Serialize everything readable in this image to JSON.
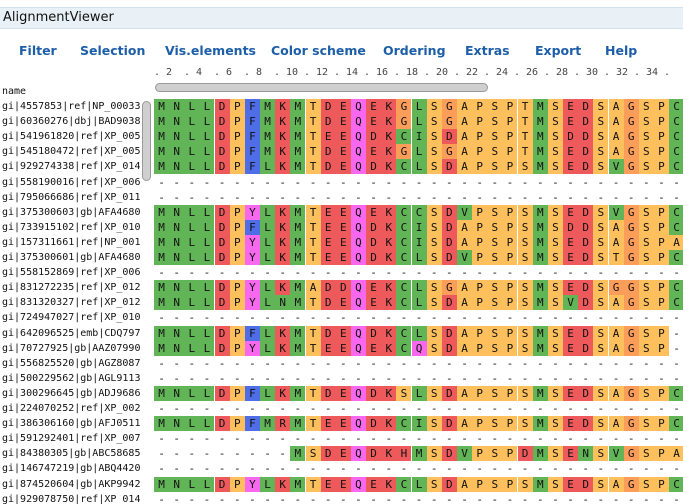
{
  "app": {
    "title": "AlignmentViewer"
  },
  "menu": [
    {
      "name": "menu-filter",
      "label": "Filter"
    },
    {
      "name": "menu-selection",
      "label": "Selection"
    },
    {
      "name": "menu-vis-elements",
      "label": "Vis.elements"
    },
    {
      "name": "menu-color-scheme",
      "label": "Color scheme"
    },
    {
      "name": "menu-ordering",
      "label": "Ordering"
    },
    {
      "name": "menu-extras",
      "label": "Extras"
    },
    {
      "name": "menu-export",
      "label": "Export"
    },
    {
      "name": "menu-help",
      "label": "Help"
    }
  ],
  "ruler": {
    "first_visible_column": 1,
    "ticks": [
      ". 2",
      ". 4",
      ". 6",
      ". 8",
      ". 10",
      ". 12",
      ". 14",
      ". 16",
      ". 18",
      ". 20",
      ". 22",
      ". 24",
      ". 26",
      ". 28",
      ". 30",
      ". 32",
      ". 34",
      "."
    ]
  },
  "names_header": "name",
  "colors": {
    "M": "#62b557",
    "N": "#62b557",
    "S": "#fdc05d",
    "T": "#fdc05d",
    "P": "#fdc05d",
    "L": "#62b557",
    "I": "#62b557",
    "V": "#62b557",
    "C": "#62b557",
    "F": "#4f6de6",
    "Y": "#f768ef",
    "W": "#4f6de6",
    "D": "#ee5a5b",
    "E": "#ee5a5b",
    "K": "#ee5a5b",
    "R": "#ee5a5b",
    "Q": "#f768ef",
    "H": "#ee5a5b",
    "G": "#fd9d5a",
    "A": "#fdc05d",
    "-": "#ffffff"
  },
  "rows": [
    {
      "name": "gi|4557853|ref|NP_00033",
      "seq": "MNLLDPFMKMTDEQEKGLSGAPSPTMSEDSAGSPC"
    },
    {
      "name": "gi|60360276|dbj|BAD9038",
      "seq": "MNLLDPFMKMTDEQEKGLSGAPSPTMSEDSAGSPC"
    },
    {
      "name": "gi|541961820|ref|XP_005",
      "seq": "MNLLDPFMKMTEEQDKCISDAPSPTMSDDSAGSPC"
    },
    {
      "name": "gi|545180472|ref|XP_005",
      "seq": "MNLLDPFMKMTDEQEKGLSGAPSPTMSEDSAGSPC"
    },
    {
      "name": "gi|929274338|ref|XP_014",
      "seq": "MNLLDPFLKMTDEQDKCLSDAPSPSMSEDSVGSPC"
    },
    {
      "name": "gi|558190016|ref|XP_006",
      "seq": "-----------------------------------"
    },
    {
      "name": "gi|795066686|ref|XP_011",
      "seq": "-----------------------------------"
    },
    {
      "name": "gi|375300603|gb|AFA4680",
      "seq": "MNLLDPYLKMTEEQEKCCSDVPSPSMSEDSVGSPC"
    },
    {
      "name": "gi|733915102|ref|XP_010",
      "seq": "MNLLDPFLKMTEEQDKCISDAPSPSMSDDSAGSPC"
    },
    {
      "name": "gi|157311661|ref|NP_001",
      "seq": "MNLLDPYLKMTEEQDKCISDAPSPSMSEDSAGSPA"
    },
    {
      "name": "gi|375300601|gb|AFA4680",
      "seq": "MNLLDPYLKMTEEQDKCLSDVPSPSMSEDSTGSPC"
    },
    {
      "name": "gi|558152869|ref|XP_006",
      "seq": "-----------------------------------"
    },
    {
      "name": "gi|831272235|ref|XP_012",
      "seq": "MNLLDPYLKMADDQEKCLSGAPSPSMSEDSGGSPC"
    },
    {
      "name": "gi|831320327|ref|XP_012",
      "seq": "MNLLDPYLNMTDEQEKCLSDAPSPSMSVDSAGSPC"
    },
    {
      "name": "gi|724947027|ref|XP_010",
      "seq": "-----------------------------------"
    },
    {
      "name": "gi|642096525|emb|CDQ797",
      "seq": "MNLLDPFLKMTDEQDKCLSDAPSPSMSEDSAGSP-"
    },
    {
      "name": "gi|70727925|gb|AAZ07990",
      "seq": "MNLLDPYLKMTEEQEKCQSDAPSPSMSEDSAGSP-"
    },
    {
      "name": "gi|556825520|gb|AGZ8087",
      "seq": "-----------------------------------"
    },
    {
      "name": "gi|500229562|gb|AGL9113",
      "seq": "-----------------------------------"
    },
    {
      "name": "gi|300296645|gb|ADJ9686",
      "seq": "MNLLDPFLKMTDEQDKSLSDAPSPSMSEDSAGSPC"
    },
    {
      "name": "gi|224070252|ref|XP_002",
      "seq": "-----------------------------------"
    },
    {
      "name": "gi|386306160|gb|AFJ0511",
      "seq": "MNLLDPFMRMTEEQDKCISDAPSPSMSEDSAGSPC"
    },
    {
      "name": "gi|591292401|ref|XP_007",
      "seq": "-----------------------------------"
    },
    {
      "name": "gi|84380305|gb|ABC58685",
      "seq": "---------MSDEQDKHMSDVPSPDMSENSVGSPA"
    },
    {
      "name": "gi|146747219|gb|ABQ4420",
      "seq": "-----------------------------------"
    },
    {
      "name": "gi|874520604|gb|AKP9942",
      "seq": "MNLLDPYLKMTEEQEKCLSDAPSPSMSEDSAGSPC"
    },
    {
      "name": "gi|929078750|ref|XP_014",
      "seq": "-----------------------------------"
    }
  ]
}
